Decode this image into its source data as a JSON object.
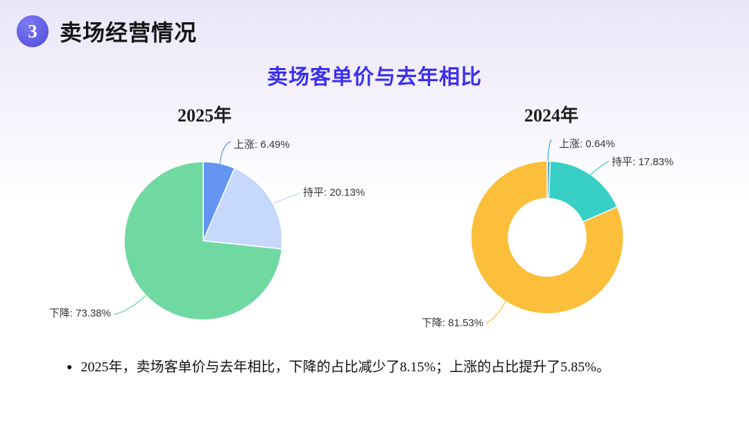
{
  "header": {
    "badge_number": "3",
    "title": "卖场经营情况",
    "badge_color": "#5b58e8"
  },
  "main_title": {
    "text": "卖场客单价与去年相比",
    "color": "#3b2ef5"
  },
  "chart_data": [
    {
      "type": "pie",
      "title": "2025年",
      "categories": [
        "上涨",
        "持平",
        "下降"
      ],
      "values": [
        6.49,
        20.13,
        73.38
      ],
      "colors": [
        "#6495F2",
        "#C6D8FB",
        "#70D8A1"
      ],
      "donut": false,
      "start_angle_deg": 0,
      "direction": "clockwise",
      "label_format": "{name}: {value}%",
      "legend_position": "none"
    },
    {
      "type": "pie",
      "title": "2024年",
      "categories": [
        "上涨",
        "持平",
        "下降"
      ],
      "values": [
        0.64,
        17.83,
        81.53
      ],
      "colors": [
        "#44A5F2",
        "#38CFC6",
        "#FBBF3C"
      ],
      "donut": true,
      "start_angle_deg": 0,
      "direction": "clockwise",
      "label_format": "{name}: {value}%",
      "legend_position": "none"
    }
  ],
  "footnote": {
    "bullet": "●",
    "text": "2025年，卖场客单价与去年相比，下降的占比减少了8.15%；上涨的占比提升了5.85%。"
  }
}
